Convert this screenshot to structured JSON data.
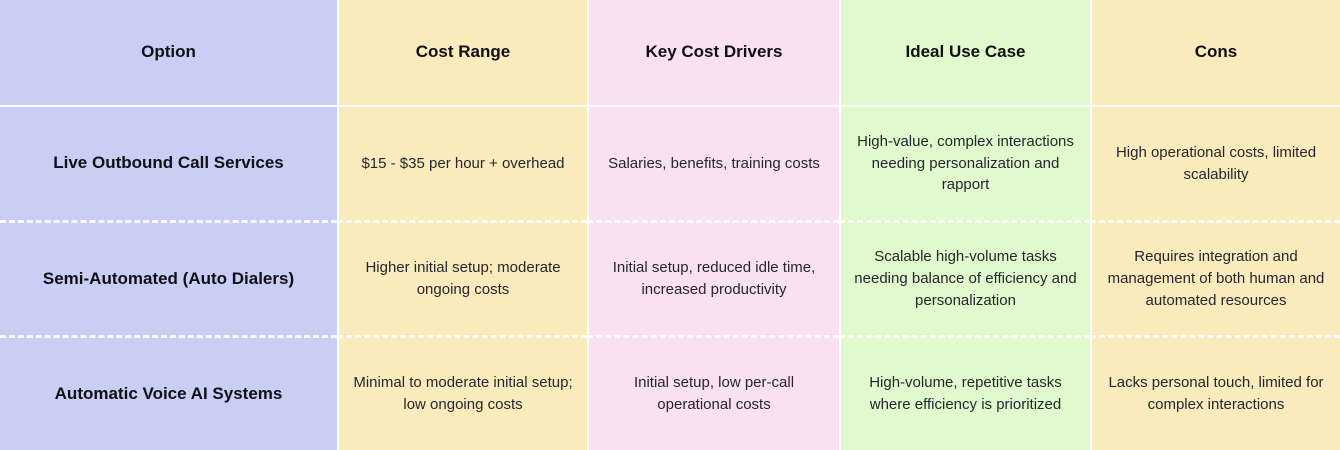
{
  "table": {
    "header": [
      "Option",
      "Cost Range",
      "Key Cost Drivers",
      "Ideal Use Case",
      "Cons"
    ],
    "rows": [
      [
        "Live Outbound Call Services",
        "$15 - $35 per hour + overhead",
        "Salaries, benefits, training costs",
        "High-value, complex interactions needing personalization and rapport",
        "High operational costs, limited scalability"
      ],
      [
        "Semi-Automated (Auto Dialers)",
        "Higher initial setup; moderate ongoing costs",
        "Initial setup, reduced idle time, increased productivity",
        "Scalable high-volume tasks needing balance of efficiency and personalization",
        "Requires integration and management of both human and automated resources"
      ],
      [
        "Automatic Voice AI Systems",
        "Minimal to moderate initial setup; low ongoing costs",
        "Initial setup, low per-call operational costs",
        "High-volume, repetitive tasks where efficiency is prioritized",
        "Lacks personal touch, limited for complex interactions"
      ]
    ],
    "column_colors": {
      "option": "#C9CEF5",
      "cost_range": "#FAEBBD",
      "key_cost_drivers": "#FAE0F3",
      "ideal_use_case": "#E1FACD",
      "cons": "#FAEBBD"
    },
    "separator_color": "#FFFFFF",
    "header_text_color": "#0F0F14",
    "body_text_color": "#26262E"
  }
}
